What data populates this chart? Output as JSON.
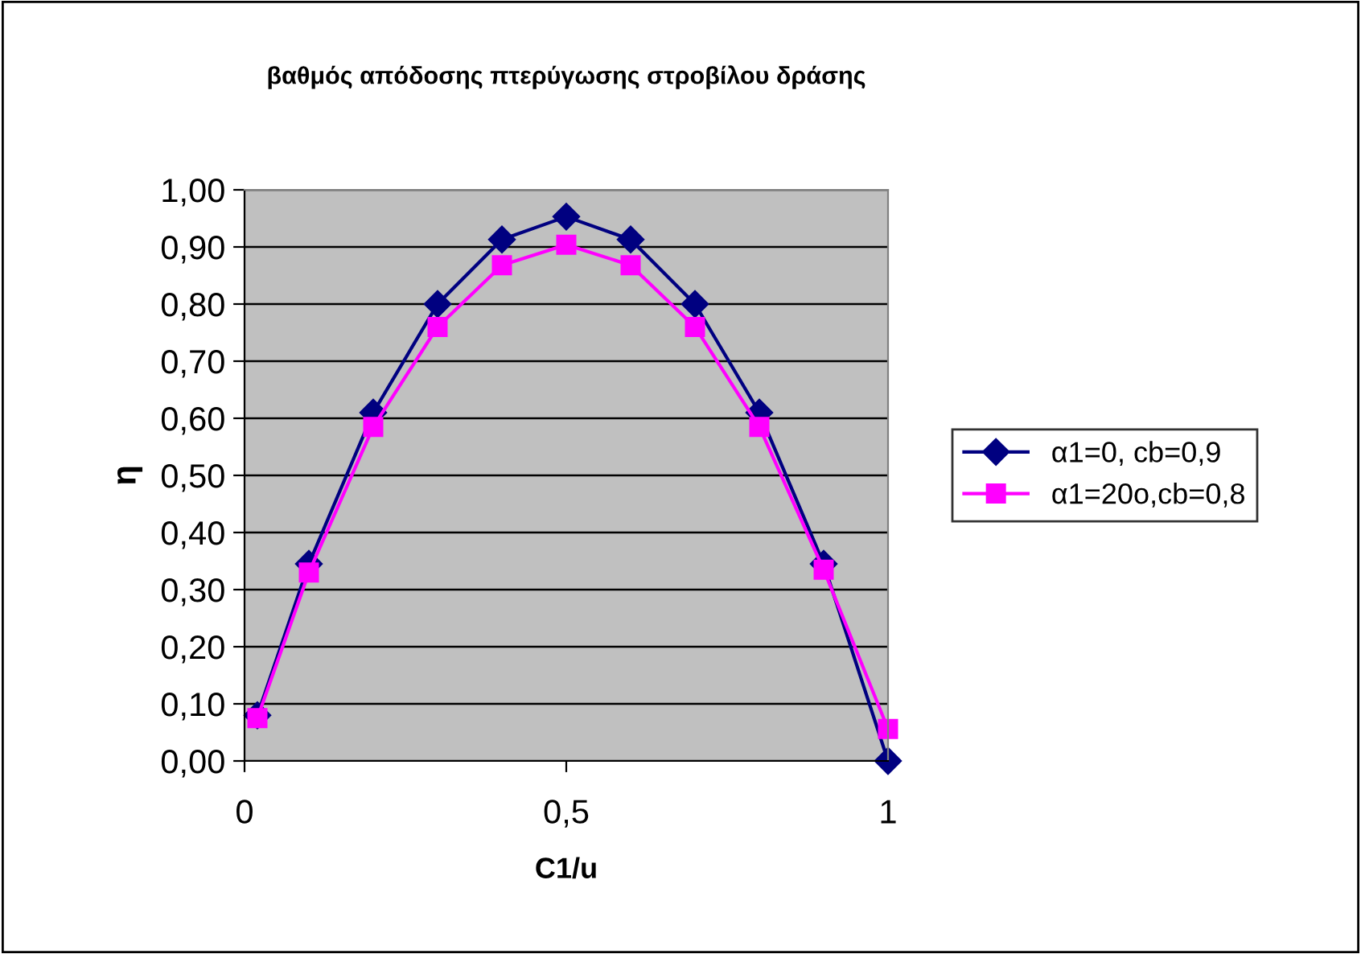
{
  "chart_data": {
    "type": "line",
    "title": "βαθμός απόδοσης πτερύγωσης στροβίλου δράσης",
    "xlabel": "C1/u",
    "ylabel": "η",
    "x": [
      0.02,
      0.1,
      0.2,
      0.3,
      0.4,
      0.5,
      0.6,
      0.7,
      0.8,
      0.9,
      1.0
    ],
    "series": [
      {
        "name": "α1=0, cb=0,9",
        "color": "#000080",
        "marker": "diamond",
        "values": [
          0.08,
          0.345,
          0.61,
          0.8,
          0.913,
          0.953,
          0.913,
          0.8,
          0.61,
          0.345,
          0.0
        ]
      },
      {
        "name": "α1=20o,cb=0,8",
        "color": "#ff00ff",
        "marker": "square",
        "values": [
          0.075,
          0.33,
          0.585,
          0.76,
          0.868,
          0.904,
          0.868,
          0.76,
          0.585,
          0.335,
          0.056
        ]
      }
    ],
    "xlim": [
      0,
      1
    ],
    "xticks": [
      0,
      {
        "value": 0.5,
        "label": "0,5"
      },
      1
    ],
    "ylim": [
      0,
      1
    ],
    "yticks": [
      {
        "value": 0,
        "label": "0,00"
      },
      {
        "value": 0.1,
        "label": "0,10"
      },
      {
        "value": 0.2,
        "label": "0,20"
      },
      {
        "value": 0.3,
        "label": "0,30"
      },
      {
        "value": 0.4,
        "label": "0,40"
      },
      {
        "value": 0.5,
        "label": "0,50"
      },
      {
        "value": 0.6,
        "label": "0,60"
      },
      {
        "value": 0.7,
        "label": "0,70"
      },
      {
        "value": 0.8,
        "label": "0,80"
      },
      {
        "value": 0.9,
        "label": "0,90"
      },
      {
        "value": 1,
        "label": "1,00"
      }
    ],
    "grid": "y",
    "legend": "right",
    "line_style": "solid"
  }
}
